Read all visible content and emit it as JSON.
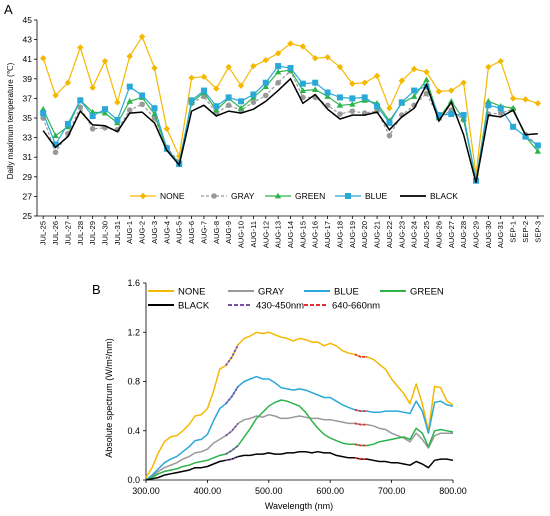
{
  "panels": {
    "a_label": "A",
    "b_label": "B"
  },
  "chart_data": [
    {
      "type": "line",
      "ylabel": "Daily maximum temperature (℃)",
      "xlabel": "",
      "ylim": [
        25,
        45
      ],
      "yticks": [
        25,
        27,
        29,
        31,
        33,
        35,
        37,
        39,
        41,
        43,
        45
      ],
      "grid": false,
      "legend": "bottom",
      "categories": [
        "JUL-25",
        "JUL-26",
        "JUL-27",
        "JUL-28",
        "JUL-29",
        "JUL-30",
        "JUL-31",
        "AUG-1",
        "AUG-2",
        "AUG-3",
        "AUG-4",
        "AUG-5",
        "AUG-6",
        "AUG-7",
        "AUG-8",
        "AUG-9",
        "AUG-10",
        "AUG-11",
        "AUG-12",
        "AUG-13",
        "AUG-14",
        "AUG-15",
        "AUG-16",
        "AUG-17",
        "AUG-18",
        "AUG-19",
        "AUG-20",
        "AUG-21",
        "AUG-22",
        "AUG-23",
        "AUG-24",
        "AUG-25",
        "AUG-26",
        "AUG-27",
        "AUG-28",
        "AUG-29",
        "AUG-30",
        "AUG-31",
        "SEP-1",
        "SEP-2",
        "SEP-3"
      ],
      "series": [
        {
          "name": "NONE",
          "color": "#F5B800",
          "marker": "diamond",
          "values": [
            41.1,
            37.3,
            38.6,
            42.2,
            38.1,
            40.8,
            36.6,
            41.3,
            43.3,
            40.1,
            33.9,
            31.1,
            39.1,
            39.2,
            38.0,
            40.2,
            38.3,
            40.3,
            40.9,
            41.6,
            42.6,
            42.3,
            41.1,
            41.2,
            40.2,
            38.5,
            38.6,
            39.3,
            36.0,
            38.8,
            40.0,
            39.7,
            37.7,
            37.8,
            38.6,
            29.2,
            40.2,
            40.8,
            37.0,
            36.9,
            36.5
          ]
        },
        {
          "name": "GRAY",
          "color": "#999999",
          "marker": "circle",
          "dashed": true,
          "values": [
            35.0,
            31.5,
            33.4,
            36.1,
            33.9,
            34.0,
            33.8,
            35.8,
            36.4,
            35.0,
            32.0,
            30.5,
            36.5,
            37.2,
            35.5,
            36.3,
            35.8,
            36.6,
            37.3,
            38.6,
            39.8,
            37.1,
            37.1,
            36.3,
            35.4,
            35.7,
            35.5,
            35.7,
            33.2,
            35.3,
            36.3,
            37.5,
            35.0,
            35.8,
            34.8,
            28.7,
            35.4,
            35.5,
            35.9,
            33.3,
            32.2
          ]
        },
        {
          "name": "GREEN",
          "color": "#2DB34A",
          "marker": "triangle",
          "values": [
            35.9,
            33.2,
            34.1,
            36.8,
            35.6,
            35.5,
            34.5,
            36.7,
            37.1,
            35.4,
            31.8,
            30.4,
            36.6,
            37.6,
            35.8,
            37.0,
            36.0,
            37.1,
            38.2,
            39.7,
            39.9,
            37.8,
            37.9,
            37.2,
            36.3,
            36.4,
            36.8,
            36.5,
            34.7,
            36.5,
            37.2,
            38.9,
            35.0,
            36.7,
            34.9,
            28.6,
            36.7,
            36.2,
            36.0,
            33.1,
            31.6
          ]
        },
        {
          "name": "BLUE",
          "color": "#2AA8D8",
          "marker": "square",
          "values": [
            35.5,
            32.3,
            34.4,
            36.8,
            35.2,
            35.9,
            34.8,
            38.2,
            37.3,
            36.0,
            31.9,
            30.3,
            36.8,
            37.8,
            36.2,
            37.1,
            36.7,
            37.4,
            38.6,
            40.3,
            40.1,
            38.5,
            38.6,
            37.6,
            37.1,
            37.0,
            37.1,
            36.2,
            34.5,
            36.6,
            37.8,
            38.2,
            35.3,
            35.4,
            35.3,
            28.6,
            36.3,
            36.0,
            34.1,
            33.1,
            32.2
          ]
        },
        {
          "name": "BLACK",
          "color": "#000000",
          "marker": "none",
          "values": [
            33.7,
            32.0,
            33.1,
            35.7,
            34.3,
            34.2,
            33.6,
            35.5,
            35.6,
            34.5,
            31.7,
            30.2,
            35.7,
            36.3,
            35.2,
            35.7,
            35.5,
            35.9,
            36.7,
            37.8,
            39.0,
            36.5,
            37.4,
            35.9,
            34.9,
            35.3,
            35.3,
            35.6,
            33.8,
            35.1,
            36.0,
            38.4,
            34.7,
            36.6,
            33.3,
            28.4,
            35.3,
            35.1,
            35.8,
            33.3,
            33.4
          ]
        }
      ]
    },
    {
      "type": "line",
      "xlabel": "Wavelength (nm)",
      "ylabel": "Absolute spectrum (W/m²/nm)",
      "xlim": [
        300,
        800
      ],
      "ylim": [
        0,
        1.6
      ],
      "xticks": [
        "300.00",
        "400.00",
        "500.00",
        "600.00",
        "700.00",
        "800.00"
      ],
      "yticks": [
        "0.0",
        "0.4",
        "0.8",
        "1.2",
        "1.6"
      ],
      "grid": false,
      "legend": "top",
      "x": [
        300,
        310,
        320,
        330,
        340,
        350,
        360,
        370,
        380,
        390,
        400,
        410,
        420,
        430,
        440,
        450,
        460,
        470,
        480,
        490,
        500,
        510,
        520,
        530,
        540,
        550,
        560,
        570,
        580,
        590,
        600,
        610,
        620,
        630,
        640,
        650,
        660,
        670,
        680,
        690,
        700,
        710,
        720,
        730,
        740,
        750,
        760,
        770,
        780,
        790,
        800
      ],
      "series": [
        {
          "name": "NONE",
          "color": "#F5B800",
          "values": [
            0.02,
            0.1,
            0.22,
            0.31,
            0.35,
            0.36,
            0.4,
            0.45,
            0.52,
            0.53,
            0.58,
            0.72,
            0.9,
            0.93,
            1.0,
            1.1,
            1.15,
            1.17,
            1.2,
            1.19,
            1.2,
            1.18,
            1.16,
            1.15,
            1.13,
            1.15,
            1.14,
            1.12,
            1.12,
            1.09,
            1.11,
            1.09,
            1.05,
            1.03,
            1.02,
            1.0,
            1.0,
            0.98,
            0.94,
            0.9,
            0.82,
            0.76,
            0.7,
            0.62,
            0.78,
            0.62,
            0.4,
            0.76,
            0.75,
            0.64,
            0.61
          ]
        },
        {
          "name": "GRAY",
          "color": "#999999",
          "values": [
            0.0,
            0.03,
            0.07,
            0.1,
            0.12,
            0.14,
            0.17,
            0.19,
            0.22,
            0.23,
            0.25,
            0.3,
            0.33,
            0.36,
            0.4,
            0.46,
            0.49,
            0.5,
            0.52,
            0.51,
            0.53,
            0.52,
            0.5,
            0.5,
            0.51,
            0.52,
            0.51,
            0.5,
            0.5,
            0.49,
            0.49,
            0.48,
            0.47,
            0.46,
            0.46,
            0.45,
            0.45,
            0.44,
            0.42,
            0.41,
            0.38,
            0.36,
            0.34,
            0.31,
            0.38,
            0.33,
            0.26,
            0.36,
            0.38,
            0.38,
            0.38
          ]
        },
        {
          "name": "BLUE",
          "color": "#2AA8D8",
          "values": [
            0.0,
            0.04,
            0.09,
            0.14,
            0.17,
            0.19,
            0.23,
            0.27,
            0.32,
            0.33,
            0.37,
            0.48,
            0.58,
            0.62,
            0.68,
            0.76,
            0.8,
            0.82,
            0.84,
            0.82,
            0.82,
            0.79,
            0.75,
            0.74,
            0.73,
            0.74,
            0.73,
            0.71,
            0.69,
            0.67,
            0.67,
            0.64,
            0.61,
            0.59,
            0.57,
            0.56,
            0.56,
            0.55,
            0.55,
            0.56,
            0.56,
            0.56,
            0.55,
            0.54,
            0.64,
            0.56,
            0.38,
            0.63,
            0.64,
            0.61,
            0.6
          ]
        },
        {
          "name": "GREEN",
          "color": "#2DB34A",
          "values": [
            0.0,
            0.02,
            0.05,
            0.07,
            0.08,
            0.09,
            0.11,
            0.12,
            0.14,
            0.15,
            0.16,
            0.18,
            0.2,
            0.21,
            0.24,
            0.28,
            0.35,
            0.42,
            0.5,
            0.55,
            0.6,
            0.63,
            0.65,
            0.64,
            0.62,
            0.6,
            0.55,
            0.48,
            0.42,
            0.37,
            0.34,
            0.32,
            0.3,
            0.29,
            0.29,
            0.28,
            0.28,
            0.29,
            0.31,
            0.32,
            0.33,
            0.34,
            0.35,
            0.33,
            0.42,
            0.38,
            0.27,
            0.4,
            0.41,
            0.4,
            0.39
          ]
        },
        {
          "name": "BLACK",
          "color": "#000000",
          "values": [
            0.0,
            0.01,
            0.02,
            0.04,
            0.05,
            0.06,
            0.07,
            0.08,
            0.1,
            0.1,
            0.11,
            0.13,
            0.15,
            0.16,
            0.17,
            0.19,
            0.2,
            0.2,
            0.21,
            0.21,
            0.22,
            0.21,
            0.21,
            0.22,
            0.22,
            0.23,
            0.23,
            0.22,
            0.23,
            0.22,
            0.22,
            0.2,
            0.19,
            0.18,
            0.18,
            0.17,
            0.17,
            0.16,
            0.15,
            0.15,
            0.14,
            0.14,
            0.13,
            0.12,
            0.15,
            0.13,
            0.1,
            0.16,
            0.17,
            0.17,
            0.16
          ]
        }
      ],
      "highlight_bands": [
        {
          "name": "430-450nm",
          "color": "#7B4FA8",
          "range": [
            430,
            450
          ]
        },
        {
          "name": "640-660nm",
          "color": "#E03030",
          "range": [
            640,
            660
          ]
        }
      ]
    }
  ]
}
